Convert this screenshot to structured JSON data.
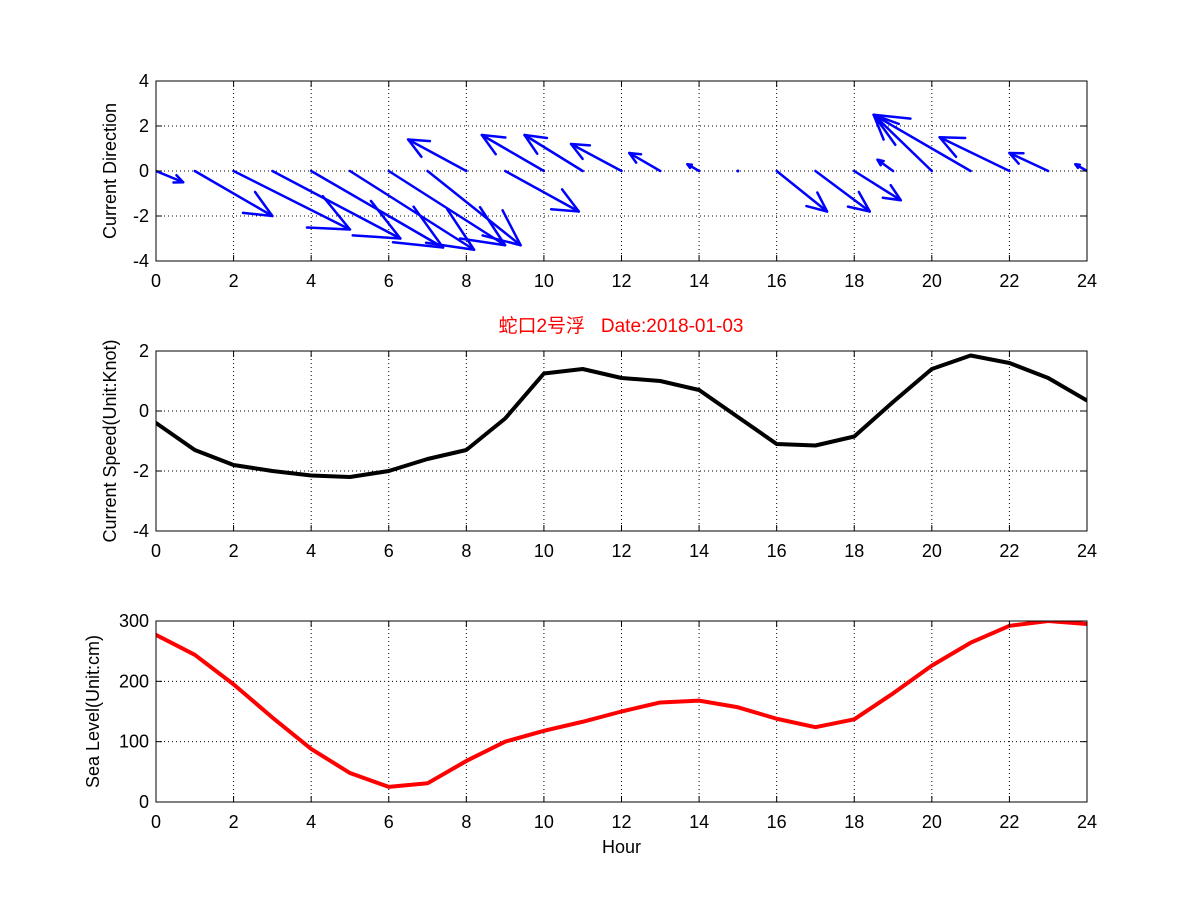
{
  "figure_title": "蛇口2号浮   Date:2018-01-03",
  "colors": {
    "direction": "#0000ff",
    "speed": "#000000",
    "sea_level": "#ff0000",
    "title": "#ff0000"
  },
  "chart_data": [
    {
      "type": "quiver",
      "ylabel": "Current Direction",
      "xlabel": "",
      "xlim": [
        0,
        24
      ],
      "ylim": [
        -4,
        4
      ],
      "xticks": [
        0,
        2,
        4,
        6,
        8,
        10,
        12,
        14,
        16,
        18,
        20,
        22,
        24
      ],
      "yticks": [
        -4,
        -2,
        0,
        2,
        4
      ],
      "grid": true,
      "x": [
        0,
        1,
        2,
        3,
        4,
        5,
        6,
        7,
        8,
        9,
        10,
        11,
        12,
        13,
        14,
        15,
        16,
        17,
        18,
        19,
        20,
        21,
        22,
        23,
        24
      ],
      "u": [
        0.7,
        2.0,
        3.0,
        3.3,
        3.4,
        3.2,
        3.0,
        2.4,
        -1.5,
        1.9,
        -1.6,
        -1.5,
        -1.3,
        -0.8,
        -0.3,
        0.0,
        1.3,
        1.4,
        1.2,
        -0.4,
        -1.5,
        -2.5,
        -1.8,
        -1.0,
        -0.3
      ],
      "v": [
        -0.5,
        -2.0,
        -2.6,
        -3.0,
        -3.4,
        -3.5,
        -3.3,
        -3.3,
        1.4,
        -1.8,
        1.6,
        1.6,
        1.2,
        0.8,
        0.3,
        0.0,
        -1.8,
        -1.8,
        -1.3,
        0.5,
        2.5,
        2.5,
        1.5,
        0.8,
        0.3
      ]
    },
    {
      "type": "line",
      "ylabel": "Current Speed(Unit:Knot)",
      "xlabel": "",
      "xlim": [
        0,
        24
      ],
      "ylim": [
        -4,
        2
      ],
      "xticks": [
        0,
        2,
        4,
        6,
        8,
        10,
        12,
        14,
        16,
        18,
        20,
        22,
        24
      ],
      "yticks": [
        -4,
        -2,
        0,
        2
      ],
      "grid": true,
      "x": [
        0,
        1,
        2,
        3,
        4,
        5,
        6,
        7,
        8,
        9,
        10,
        11,
        12,
        13,
        14,
        15,
        16,
        17,
        18,
        19,
        20,
        21,
        22,
        23,
        24
      ],
      "y": [
        -0.4,
        -1.3,
        -1.8,
        -2.0,
        -2.15,
        -2.2,
        -2.0,
        -1.6,
        -1.3,
        -0.25,
        1.25,
        1.4,
        1.1,
        1.0,
        0.7,
        -0.2,
        -1.1,
        -1.15,
        -0.85,
        0.3,
        1.4,
        1.85,
        1.6,
        1.1,
        0.35
      ]
    },
    {
      "type": "line",
      "ylabel": "Sea Level(Unit:cm)",
      "xlabel": "Hour",
      "xlim": [
        0,
        24
      ],
      "ylim": [
        0,
        300
      ],
      "xticks": [
        0,
        2,
        4,
        6,
        8,
        10,
        12,
        14,
        16,
        18,
        20,
        22,
        24
      ],
      "yticks": [
        0,
        100,
        200,
        300
      ],
      "grid": true,
      "x": [
        0,
        1,
        2,
        3,
        4,
        5,
        6,
        7,
        8,
        9,
        10,
        11,
        12,
        13,
        14,
        15,
        16,
        17,
        18,
        19,
        20,
        21,
        22,
        23,
        24
      ],
      "y": [
        277,
        244,
        195,
        140,
        88,
        48,
        25,
        31,
        68,
        100,
        118,
        133,
        150,
        165,
        168,
        157,
        138,
        124,
        137,
        180,
        226,
        264,
        292,
        300,
        295
      ]
    }
  ]
}
